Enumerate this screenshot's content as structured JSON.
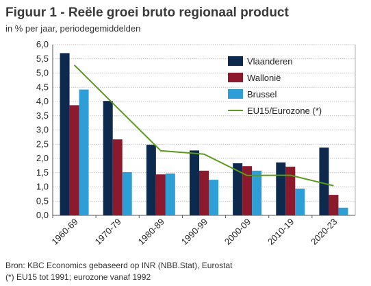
{
  "chart_data": {
    "type": "bar",
    "title": "Figuur 1 - Reële groei bruto regionaal product",
    "subtitle": "in % per jaar, periodegemiddelden",
    "categories": [
      "1960-69",
      "1970-79",
      "1980-89",
      "1990-99",
      "2000-09",
      "2010-19",
      "2020-23"
    ],
    "series": [
      {
        "name": "Vlaanderen",
        "type": "bar",
        "color": "#0d2a4e",
        "values": [
          5.7,
          4.02,
          2.48,
          2.28,
          1.83,
          1.86,
          2.38
        ]
      },
      {
        "name": "Wallonië",
        "type": "bar",
        "color": "#8c1a2c",
        "values": [
          3.87,
          2.67,
          1.44,
          1.57,
          1.73,
          1.71,
          0.72
        ]
      },
      {
        "name": "Brussel",
        "type": "bar",
        "color": "#2e9fd6",
        "values": [
          4.42,
          1.52,
          1.47,
          1.25,
          1.57,
          0.94,
          0.27
        ]
      },
      {
        "name": "EU15/Eurozone (*)",
        "type": "line",
        "color": "#5a9a1e",
        "values": [
          5.28,
          null,
          2.27,
          2.15,
          1.4,
          1.41,
          1.04
        ]
      }
    ],
    "yticks": [
      "0,0",
      "0,5",
      "1,0",
      "1,5",
      "2,0",
      "2,5",
      "3,0",
      "3,5",
      "4,0",
      "4,5",
      "5,0",
      "5,5",
      "6,0"
    ],
    "ylim": [
      0,
      6
    ],
    "grid": true,
    "legend_position": "top-right"
  },
  "footer": {
    "source": "Bron: KBC Economics gebaseerd op INR (NBB.Stat), Eurostat",
    "note": "(*) EU15 tot 1991; eurozone vanaf 1992"
  }
}
